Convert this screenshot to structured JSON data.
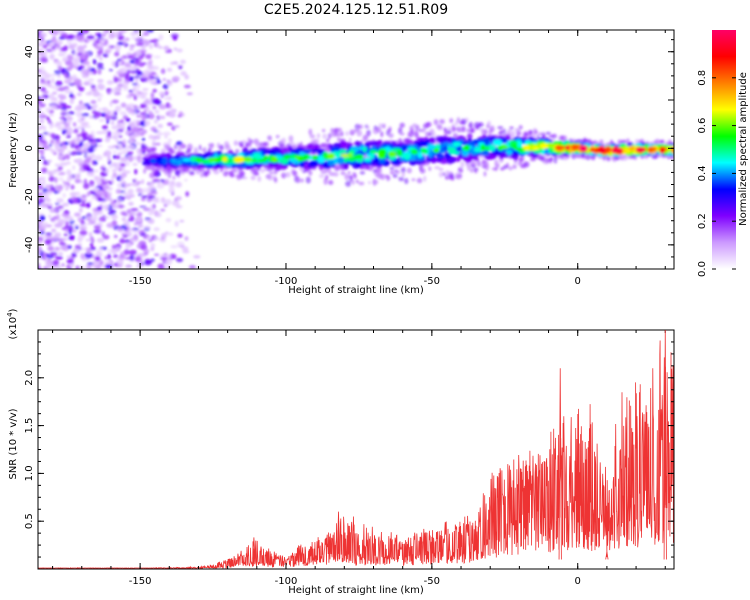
{
  "title": "C2E5.2024.125.12.51.R09",
  "colorbar": {
    "label": "Normalized spectral amplitude",
    "ticks": [
      0.0,
      0.2,
      0.4,
      0.6,
      0.8
    ],
    "tick_labels": [
      "0.0",
      "0.2",
      "0.4",
      "0.6",
      "0.8"
    ],
    "range": [
      0,
      1
    ],
    "colors": [
      "#ffffff",
      "#cc99ff",
      "#7f00ff",
      "#0000ff",
      "#00ffff",
      "#00ff00",
      "#ffff00",
      "#ff7f00",
      "#ff0000",
      "#ff0066"
    ]
  },
  "chart_data": [
    {
      "type": "heatmap",
      "title": "C2E5.2024.125.12.51.R09",
      "xlabel": "Height of straight line (km)",
      "ylabel": "Frequency (Hz)",
      "xlim": [
        -185,
        33
      ],
      "ylim": [
        -50,
        49
      ],
      "x_ticks": [
        -150,
        -100,
        -50,
        0
      ],
      "x_tick_labels": [
        "-150",
        "-100",
        "-50",
        "0"
      ],
      "y_ticks": [
        -40,
        -20,
        0,
        20,
        40
      ],
      "y_tick_labels": [
        "-40",
        "-20",
        "0",
        "20",
        "40"
      ],
      "noise_region": {
        "x_range": [
          -185,
          -130
        ],
        "y_range": [
          -50,
          49
        ],
        "amplitude": [
          0.05,
          0.3
        ]
      },
      "ridge": [
        {
          "x": -148,
          "y": -5.5,
          "half_width": 2.5,
          "amplitude": 0.3
        },
        {
          "x": -140,
          "y": -5.3,
          "half_width": 2.5,
          "amplitude": 0.4
        },
        {
          "x": -130,
          "y": -5.0,
          "half_width": 2.5,
          "amplitude": 0.5
        },
        {
          "x": -120,
          "y": -4.7,
          "half_width": 3.0,
          "amplitude": 0.6
        },
        {
          "x": -110,
          "y": -4.4,
          "half_width": 3.5,
          "amplitude": 0.55
        },
        {
          "x": -100,
          "y": -4.0,
          "half_width": 4.0,
          "amplitude": 0.5
        },
        {
          "x": -90,
          "y": -3.5,
          "half_width": 4.5,
          "amplitude": 0.5
        },
        {
          "x": -80,
          "y": -3.0,
          "half_width": 5.0,
          "amplitude": 0.55
        },
        {
          "x": -70,
          "y": -2.5,
          "half_width": 5.0,
          "amplitude": 0.55
        },
        {
          "x": -60,
          "y": -2.0,
          "half_width": 5.0,
          "amplitude": 0.5
        },
        {
          "x": -50,
          "y": -1.0,
          "half_width": 5.0,
          "amplitude": 0.5
        },
        {
          "x": -40,
          "y": 0.0,
          "half_width": 5.0,
          "amplitude": 0.5
        },
        {
          "x": -30,
          "y": 0.5,
          "half_width": 4.5,
          "amplitude": 0.5
        },
        {
          "x": -20,
          "y": 0.5,
          "half_width": 3.5,
          "amplitude": 0.6
        },
        {
          "x": -10,
          "y": 0.5,
          "half_width": 2.5,
          "amplitude": 0.7
        },
        {
          "x": 0,
          "y": 0.0,
          "half_width": 1.5,
          "amplitude": 0.9
        },
        {
          "x": 10,
          "y": -1.0,
          "half_width": 1.5,
          "amplitude": 0.85
        },
        {
          "x": 20,
          "y": -0.5,
          "half_width": 1.5,
          "amplitude": 0.9
        },
        {
          "x": 33,
          "y": -0.5,
          "half_width": 1.5,
          "amplitude": 0.8
        }
      ]
    },
    {
      "type": "line",
      "xlabel": "Height of straight line (km)",
      "ylabel": "SNR (10 * v/v)",
      "y_multiplier_label": "(x10⁴)",
      "xlim": [
        -185,
        33
      ],
      "ylim": [
        0,
        2.5
      ],
      "x_ticks": [
        -150,
        -100,
        -50,
        0
      ],
      "x_tick_labels": [
        "-150",
        "-100",
        "-50",
        "0"
      ],
      "y_ticks": [
        0.5,
        1.0,
        1.5,
        2.0
      ],
      "y_tick_labels": [
        "0.5",
        "1.0",
        "1.5",
        "2.0"
      ],
      "line_color": "#ee3333",
      "envelope": {
        "x": [
          -185,
          -150,
          -130,
          -120,
          -115,
          -110,
          -105,
          -100,
          -95,
          -90,
          -85,
          -80,
          -70,
          -60,
          -50,
          -40,
          -35,
          -30,
          -25,
          -20,
          -15,
          -10,
          -5,
          0,
          5,
          10,
          15,
          20,
          25,
          30,
          33
        ],
        "baseline": [
          0.01,
          0.01,
          0.01,
          0.03,
          0.06,
          0.08,
          0.05,
          0.06,
          0.1,
          0.12,
          0.14,
          0.14,
          0.12,
          0.12,
          0.16,
          0.2,
          0.24,
          0.3,
          0.4,
          0.5,
          0.55,
          0.55,
          0.6,
          0.65,
          0.6,
          0.4,
          0.65,
          0.7,
          0.75,
          0.85,
          0.9
        ],
        "peaks": [
          0.01,
          0.01,
          0.02,
          0.1,
          0.2,
          0.33,
          0.2,
          0.12,
          0.28,
          0.34,
          0.4,
          0.6,
          0.45,
          0.35,
          0.45,
          0.55,
          0.65,
          1.05,
          1.1,
          1.25,
          1.3,
          1.45,
          1.6,
          1.7,
          1.75,
          1.05,
          1.85,
          2.0,
          2.2,
          2.5,
          2.2
        ]
      },
      "notable_points": [
        {
          "x": -111,
          "y": 0.33
        },
        {
          "x": -82,
          "y": 0.6
        },
        {
          "x": -6,
          "y": 2.1
        },
        {
          "x": 10,
          "y": 0.18
        },
        {
          "x": 30,
          "y": 2.5
        }
      ]
    }
  ]
}
